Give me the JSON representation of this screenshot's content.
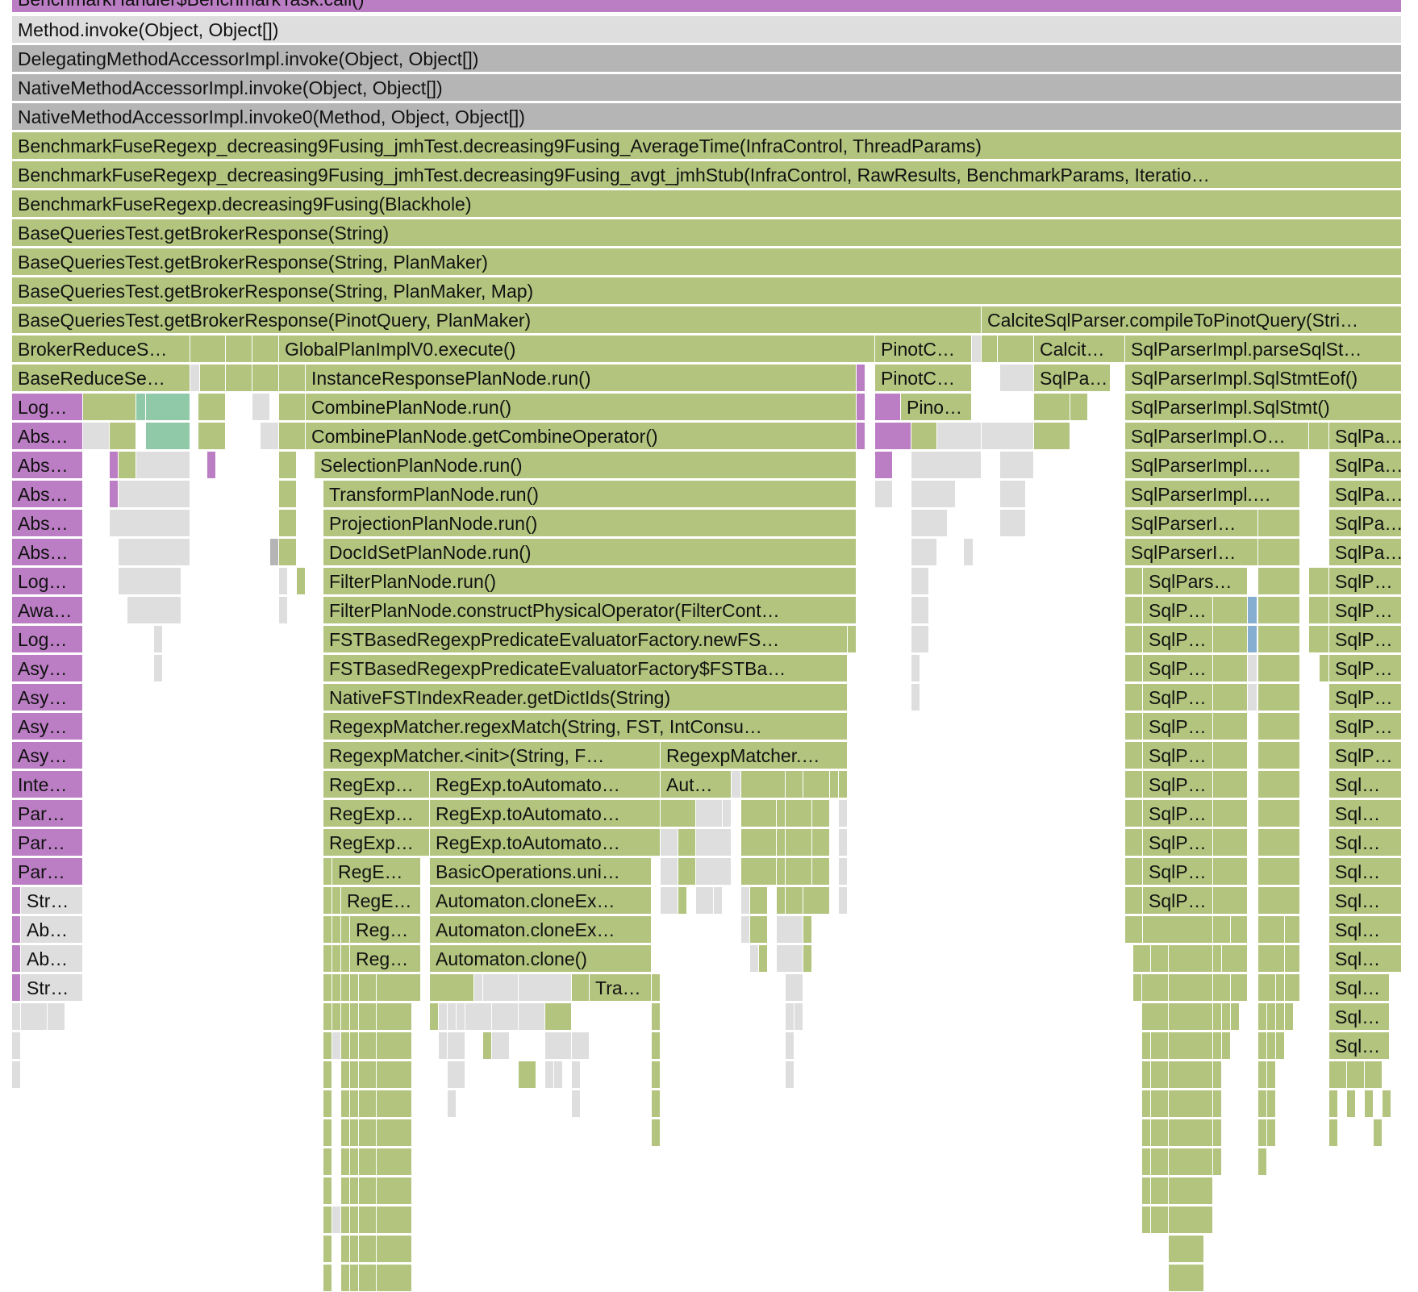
{
  "colors": {
    "green": "#b3c47e",
    "purple": "#bb7ec4",
    "light": "#dedede",
    "dark": "#b5b5b5",
    "teal": "#8fc9a8",
    "blue": "#85aed0"
  },
  "frames": {
    "r0_call": "BenchmarkHandler$BenchmarkTask.call()",
    "r1_method_invoke": "Method.invoke(Object, Object[])",
    "r2_delegating_invoke": "DelegatingMethodAccessorImpl.invoke(Object, Object[])",
    "r3_native_invoke": "NativeMethodAccessorImpl.invoke(Object, Object[])",
    "r4_native_invoke0": "NativeMethodAccessorImpl.invoke0(Method, Object, Object[])",
    "r5_average_time": "BenchmarkFuseRegexp_decreasing9Fusing_jmhTest.decreasing9Fusing_AverageTime(InfraControl, ThreadParams)",
    "r6_avgt_stub": "BenchmarkFuseRegexp_decreasing9Fusing_jmhTest.decreasing9Fusing_avgt_jmhStub(InfraControl, RawResults, BenchmarkParams, Iteratio…",
    "r7_decreasing9": "BenchmarkFuseRegexp.decreasing9Fusing(Blackhole)",
    "r8_broker_string": "BaseQueriesTest.getBrokerResponse(String)",
    "r9_broker_planmaker": "BaseQueriesTest.getBrokerResponse(String, PlanMaker)",
    "r10_broker_map": "BaseQueriesTest.getBrokerResponse(String, PlanMaker, Map)",
    "r11_broker_pinot": "BaseQueriesTest.getBrokerResponse(PinotQuery, PlanMaker)",
    "r11_calcite_compile": "CalciteSqlParser.compileToPinotQuery(Stri…",
    "r12_broker_reduce": "BrokerReduceS…",
    "r12_global_plan": "GlobalPlanImplV0.execute()",
    "r12_pinotc": "PinotC…",
    "r12_calcit": "Calcit…",
    "r12_parse_sql": "SqlParserImpl.parseSqlSt…",
    "r13_base_reduce": "BaseReduceSe…",
    "r13_instance_response": "InstanceResponsePlanNode.run()",
    "r13_pinotc": "PinotC…",
    "r13_sqlpa": "SqlPa…",
    "r13_stmt_eof": "SqlParserImpl.SqlStmtEof()",
    "r14_log": "Log…",
    "r14_combine_run": "CombinePlanNode.run()",
    "r14_pino": "Pino…",
    "r14_sql_stmt": "SqlParserImpl.SqlStmt()",
    "r15_abs": "Abs…",
    "r15_combine_op": "CombinePlanNode.getCombineOperator()",
    "r15_sqlparser_o": "SqlParserImpl.O…",
    "r15_sqlpa_right": "SqlPa…",
    "r16_abs": "Abs…",
    "r16_selection": "SelectionPlanNode.run()",
    "r16_sqlparser": "SqlParserImpl.…",
    "r16_sqlpa_right": "SqlPa…",
    "r17_abs": "Abs…",
    "r17_transform": "TransformPlanNode.run()",
    "r17_sqlparser": "SqlParserImpl.…",
    "r17_sqlpa_right": "SqlPa…",
    "r18_abs": "Abs…",
    "r18_projection": "ProjectionPlanNode.run()",
    "r18_sqlparseri": "SqlParserI…",
    "r18_sqlpa_right": "SqlPa…",
    "r19_abs": "Abs…",
    "r19_docidset": "DocIdSetPlanNode.run()",
    "r19_sqlparseri": "SqlParserI…",
    "r19_sqlpa_right": "SqlPa…",
    "r20_log": "Log…",
    "r20_filter_run": "FilterPlanNode.run()",
    "r20_sqlpars": "SqlPars…",
    "r20_sqlp_right": "SqlP…",
    "r21_awa": "Awa…",
    "r21_filter_construct": "FilterPlanNode.constructPhysicalOperator(FilterCont…",
    "r21_sqlp": "SqlP…",
    "r21_sqlp_right": "SqlP…",
    "r22_log": "Log…",
    "r22_fst_newfs": "FSTBasedRegexpPredicateEvaluatorFactory.newFS…",
    "r22_sqlp": "SqlP…",
    "r22_sqlp_right": "SqlP…",
    "r23_asy": "Asy…",
    "r23_fst_ba": "FSTBasedRegexpPredicateEvaluatorFactory$FSTBa…",
    "r23_sqlp": "SqlP…",
    "r23_sqlp_right": "SqlP…",
    "r24_asy": "Asy…",
    "r24_dictids": "NativeFSTIndexReader.getDictIds(String)",
    "r24_sqlp": "SqlP…",
    "r24_sqlp_right": "SqlP…",
    "r25_asy": "Asy…",
    "r25_regex_match": "RegexpMatcher.regexMatch(String, FST, IntConsu…",
    "r25_sqlp": "SqlP…",
    "r25_sqlp_right": "SqlP…",
    "r26_asy": "Asy…",
    "r26_matcher_init": "RegexpMatcher.<init>(String, F…",
    "r26_matcher_other": "RegexpMatcher.…",
    "r26_sqlp": "SqlP…",
    "r26_sqlp_right": "SqlP…",
    "r27_inte": "Inte…",
    "r27_regexp": "RegExp…",
    "r27_to_automaton": "RegExp.toAutomato…",
    "r27_aut": "Aut…",
    "r27_sqlp": "SqlP…",
    "r27_sql_right": "Sql…",
    "r28_par": "Par…",
    "r28_regexp": "RegExp…",
    "r28_to_automaton": "RegExp.toAutomato…",
    "r28_sqlp": "SqlP…",
    "r28_sql_right": "Sql…",
    "r29_par": "Par…",
    "r29_regexp": "RegExp…",
    "r29_to_automaton": "RegExp.toAutomato…",
    "r29_sqlp": "SqlP…",
    "r29_sql_right": "Sql…",
    "r30_par": "Par…",
    "r30_rege": "RegE…",
    "r30_basic_ops": "BasicOperations.uni…",
    "r30_sqlp": "SqlP…",
    "r30_sql_right": "Sql…",
    "r31_str": "Str…",
    "r31_rege": "RegE…",
    "r31_clone_ex": "Automaton.cloneEx…",
    "r31_sqlp": "SqlP…",
    "r31_sql_right": "Sql…",
    "r32_ab": "Ab…",
    "r32_reg": "Reg…",
    "r32_clone_ex": "Automaton.cloneEx…",
    "r32_sql_right": "Sql…",
    "r33_ab": "Ab…",
    "r33_reg": "Reg…",
    "r33_clone": "Automaton.clone()",
    "r33_sql_right": "Sql…",
    "r34_str": "Str…",
    "r34_tra": "Tra…",
    "r34_sql_right": "Sql…",
    "r35_sql_right": "Sql…",
    "r36_sql_right": "Sql…"
  }
}
